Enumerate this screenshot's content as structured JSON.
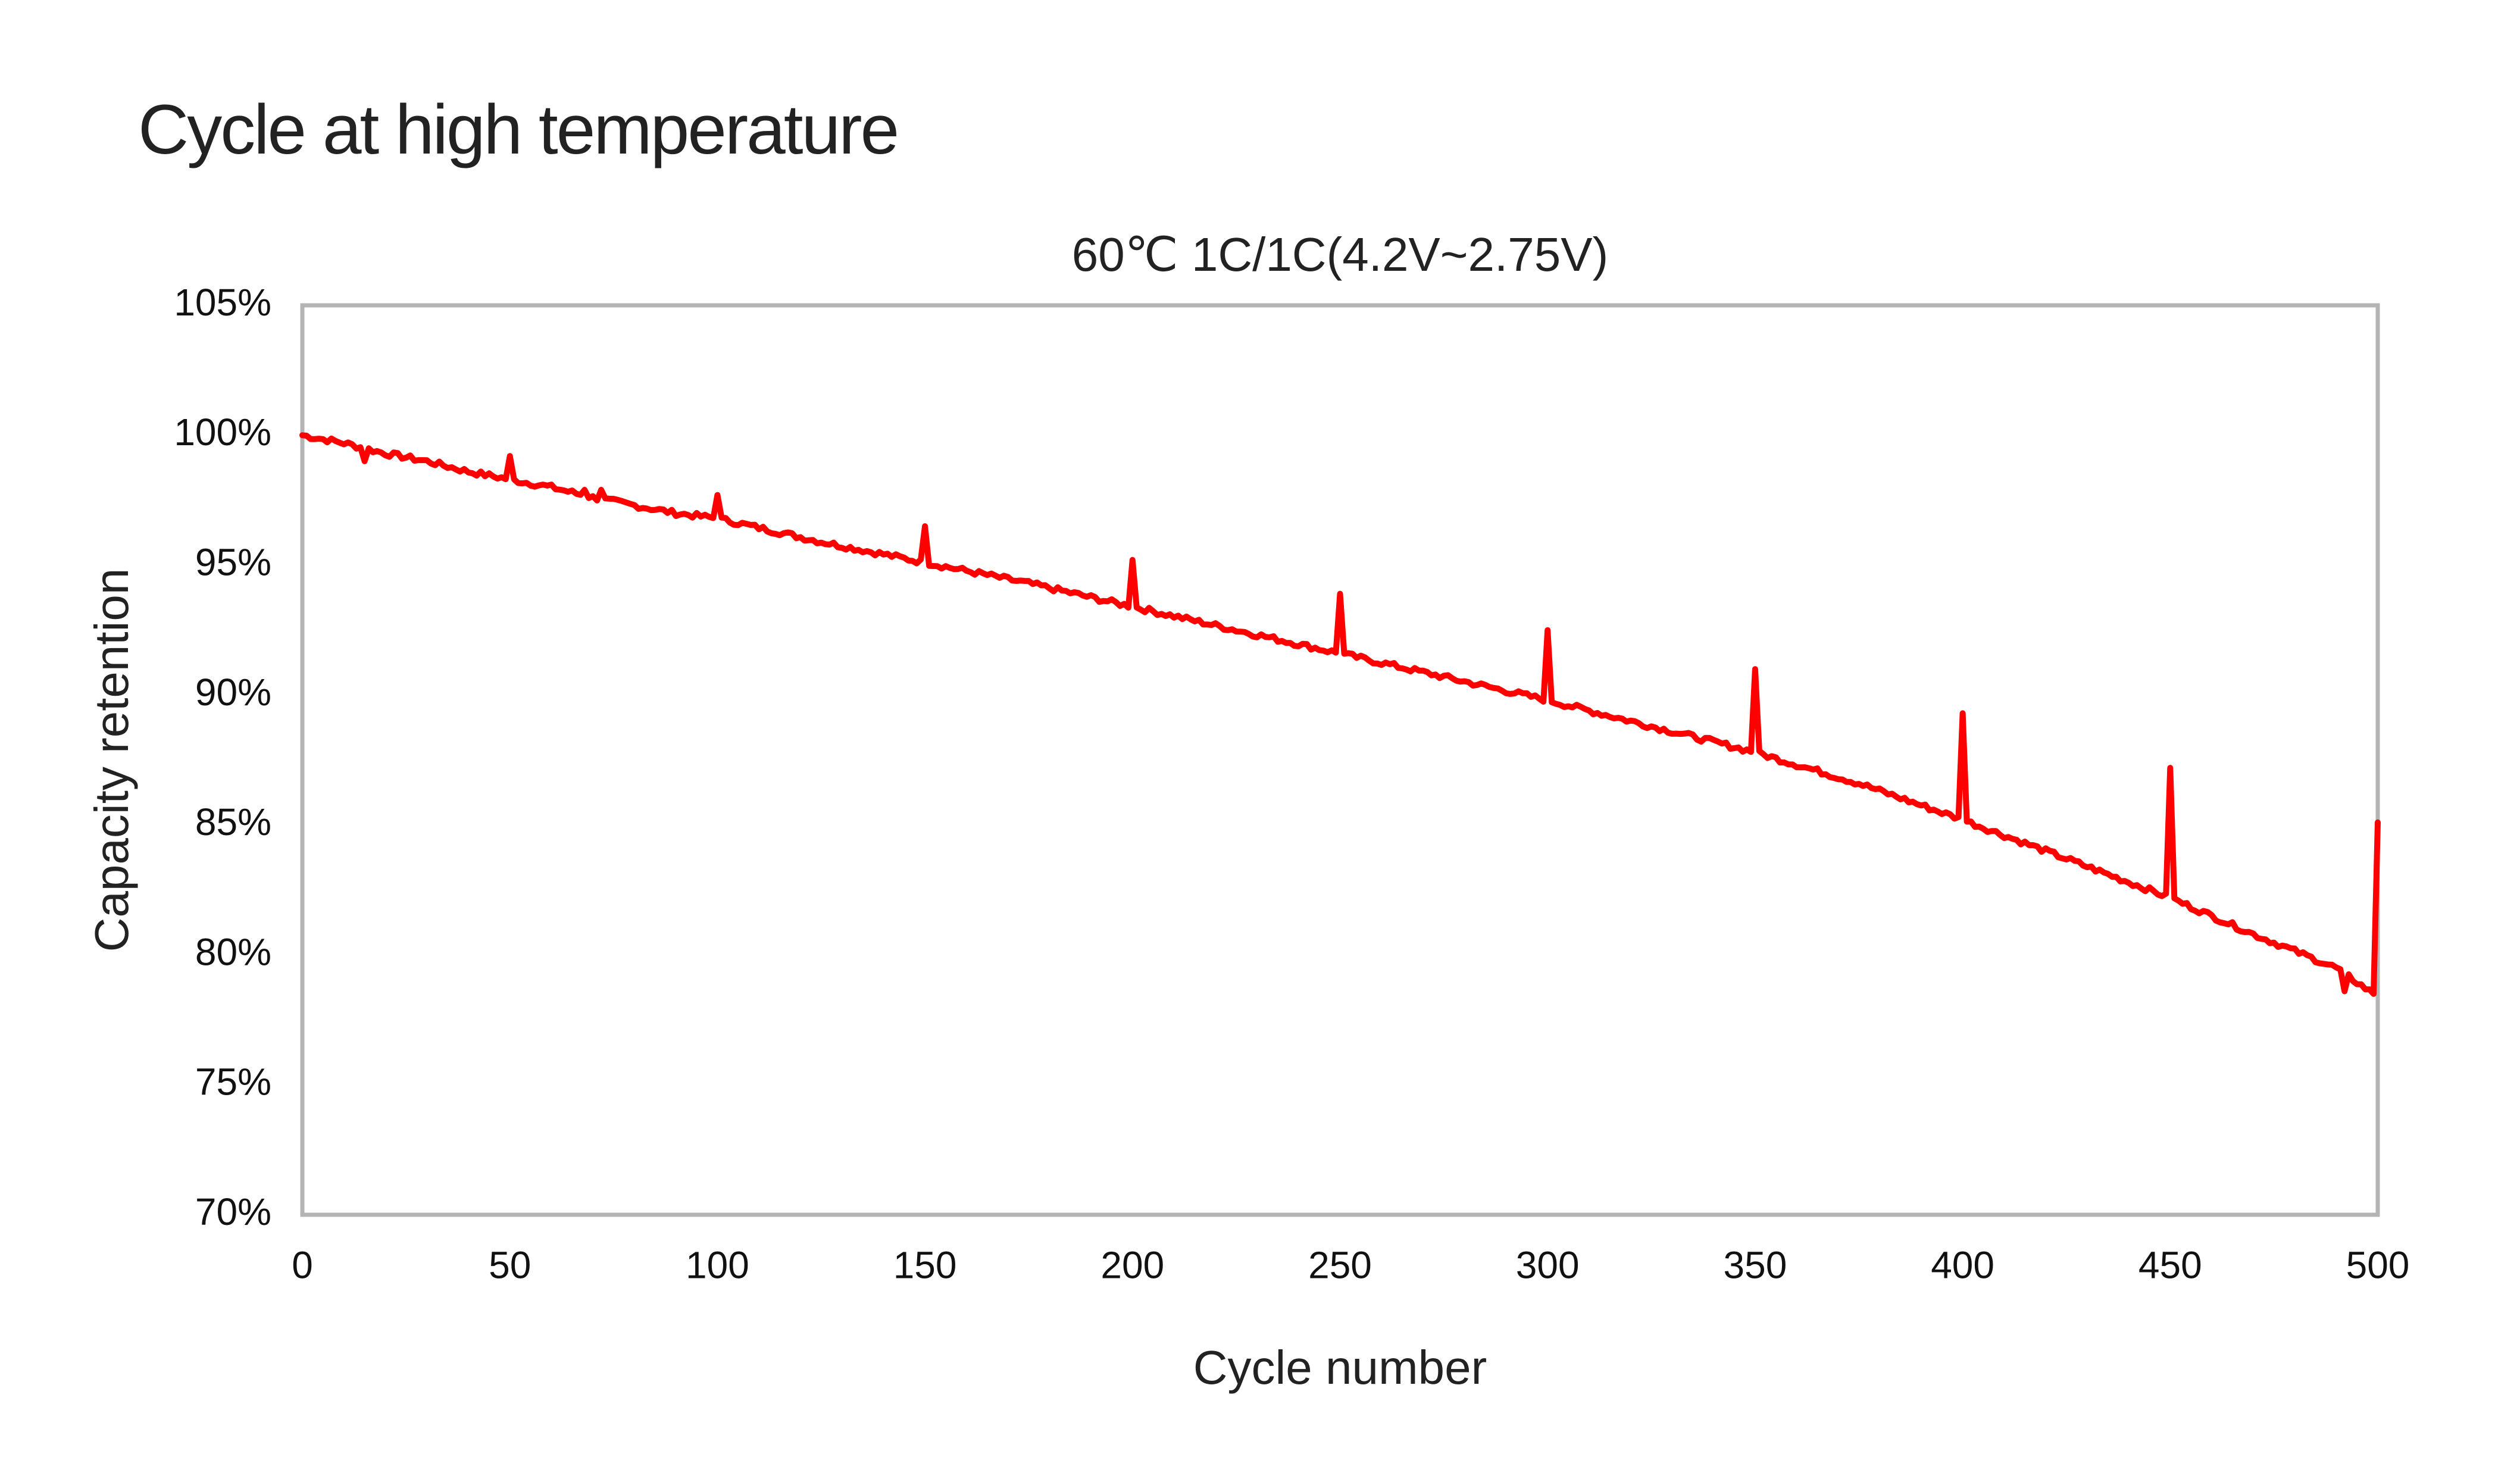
{
  "page": {
    "title": "Cycle at high temperature"
  },
  "chart_data": {
    "type": "line",
    "title": "60℃ 1C/1C(4.2V~2.75V)",
    "xlabel": "Cycle number",
    "ylabel": "Capacity retention",
    "xlim": [
      0,
      500
    ],
    "ylim": [
      70,
      105
    ],
    "x_ticks": [
      "0",
      "50",
      "100",
      "150",
      "200",
      "250",
      "300",
      "350",
      "400",
      "450",
      "500"
    ],
    "x_tick_values": [
      0,
      50,
      100,
      150,
      200,
      250,
      300,
      350,
      400,
      450,
      500
    ],
    "y_ticks": [
      "105%",
      "100%",
      "95%",
      "90%",
      "85%",
      "80%",
      "75%",
      "70%"
    ],
    "y_tick_values": [
      105,
      100,
      95,
      90,
      85,
      80,
      75,
      70
    ],
    "grid": false,
    "legend": "none",
    "series": [
      {
        "name": "Capacity retention",
        "color": "#ff0000",
        "baseline_points": [
          [
            0,
            100.0
          ],
          [
            10,
            99.7
          ],
          [
            20,
            99.3
          ],
          [
            30,
            99.0
          ],
          [
            40,
            98.6
          ],
          [
            50,
            98.3
          ],
          [
            60,
            98.0
          ],
          [
            70,
            97.6
          ],
          [
            80,
            97.3
          ],
          [
            90,
            97.0
          ],
          [
            100,
            96.8
          ],
          [
            125,
            95.9
          ],
          [
            150,
            95.1
          ],
          [
            175,
            94.3
          ],
          [
            200,
            93.4
          ],
          [
            225,
            92.5
          ],
          [
            250,
            91.6
          ],
          [
            275,
            90.7
          ],
          [
            300,
            89.8
          ],
          [
            325,
            88.8
          ],
          [
            350,
            87.8
          ],
          [
            375,
            86.6
          ],
          [
            400,
            85.2
          ],
          [
            425,
            83.7
          ],
          [
            450,
            82.2
          ],
          [
            470,
            80.8
          ],
          [
            490,
            79.5
          ],
          [
            499,
            78.5
          ]
        ],
        "spikes": [
          [
            15,
            99.0
          ],
          [
            50,
            99.2
          ],
          [
            68,
            97.9
          ],
          [
            72,
            97.9
          ],
          [
            100,
            97.7
          ],
          [
            150,
            96.5
          ],
          [
            200,
            95.2
          ],
          [
            250,
            93.9
          ],
          [
            300,
            92.5
          ],
          [
            350,
            91.0
          ],
          [
            400,
            89.3
          ],
          [
            450,
            87.2
          ],
          [
            492,
            78.6
          ],
          [
            500,
            85.1
          ]
        ]
      }
    ]
  }
}
